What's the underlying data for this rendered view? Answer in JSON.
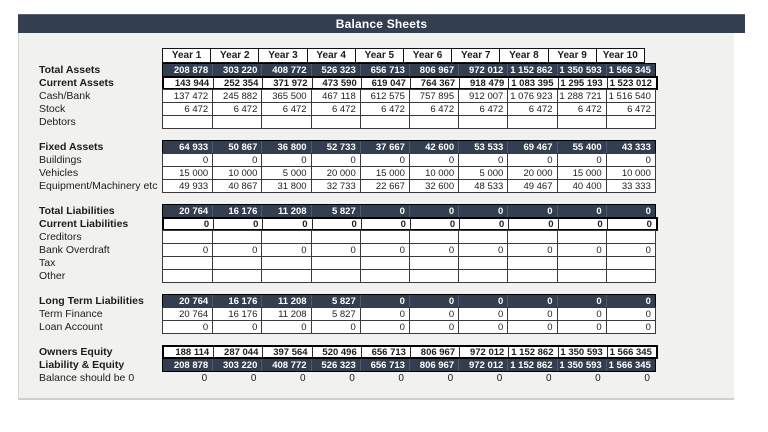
{
  "title": "Balance Sheets",
  "colors": {
    "accent_navy": "#333f50",
    "sheet_background": "#f1f1ef",
    "cell_background": "#ffffff"
  },
  "table": {
    "columns": [
      "Year 1",
      "Year 2",
      "Year 3",
      "Year 4",
      "Year 5",
      "Year 6",
      "Year 7",
      "Year 8",
      "Year 9",
      "Year 10"
    ],
    "sections": [
      {
        "rows": [
          {
            "label": "Total Assets",
            "style": "dark",
            "values": [
              "208 878",
              "303 220",
              "408 772",
              "526 323",
              "656 713",
              "806 967",
              "972 012",
              "1 152 862",
              "1 350 593",
              "1 566 345"
            ]
          },
          {
            "label": "Current Assets",
            "style": "bold",
            "values": [
              "143 944",
              "252 354",
              "371 972",
              "473 590",
              "619 047",
              "764 367",
              "918 479",
              "1 083 395",
              "1 295 193",
              "1 523 012"
            ]
          },
          {
            "label": "Cash/Bank",
            "style": "normal",
            "values": [
              "137 472",
              "245 882",
              "365 500",
              "467 118",
              "612 575",
              "757 895",
              "912 007",
              "1 076 923",
              "1 288 721",
              "1 516 540"
            ]
          },
          {
            "label": "Stock",
            "style": "normal",
            "values": [
              "6 472",
              "6 472",
              "6 472",
              "6 472",
              "6 472",
              "6 472",
              "6 472",
              "6 472",
              "6 472",
              "6 472"
            ]
          },
          {
            "label": "Debtors",
            "style": "normal",
            "values": [
              "",
              "",
              "",
              "",
              "",
              "",
              "",
              "",
              "",
              ""
            ]
          }
        ]
      },
      {
        "rows": [
          {
            "label": "Fixed Assets",
            "style": "dark",
            "values": [
              "64 933",
              "50 867",
              "36 800",
              "52 733",
              "37 667",
              "42 600",
              "53 533",
              "69 467",
              "55 400",
              "43 333"
            ]
          },
          {
            "label": "Buildings",
            "style": "normal",
            "values": [
              "0",
              "0",
              "0",
              "0",
              "0",
              "0",
              "0",
              "0",
              "0",
              "0"
            ]
          },
          {
            "label": "Vehicles",
            "style": "normal",
            "values": [
              "15 000",
              "10 000",
              "5 000",
              "20 000",
              "15 000",
              "10 000",
              "5 000",
              "20 000",
              "15 000",
              "10 000"
            ]
          },
          {
            "label": "Equipment/Machinery etc",
            "style": "normal",
            "values": [
              "49 933",
              "40 867",
              "31 800",
              "32 733",
              "22 667",
              "32 600",
              "48 533",
              "49 467",
              "40 400",
              "33 333"
            ]
          }
        ]
      },
      {
        "rows": [
          {
            "label": "Total Liabilities",
            "style": "dark",
            "values": [
              "20 764",
              "16 176",
              "11 208",
              "5 827",
              "0",
              "0",
              "0",
              "0",
              "0",
              "0"
            ]
          },
          {
            "label": "Current Liabilities",
            "style": "bold",
            "values": [
              "0",
              "0",
              "0",
              "0",
              "0",
              "0",
              "0",
              "0",
              "0",
              "0"
            ]
          },
          {
            "label": "Creditors",
            "style": "normal",
            "values": [
              "",
              "",
              "",
              "",
              "",
              "",
              "",
              "",
              "",
              ""
            ]
          },
          {
            "label": "Bank Overdraft",
            "style": "normal",
            "values": [
              "0",
              "0",
              "0",
              "0",
              "0",
              "0",
              "0",
              "0",
              "0",
              "0"
            ]
          },
          {
            "label": "Tax",
            "style": "normal",
            "values": [
              "",
              "",
              "",
              "",
              "",
              "",
              "",
              "",
              "",
              ""
            ]
          },
          {
            "label": "Other",
            "style": "normal",
            "values": [
              "",
              "",
              "",
              "",
              "",
              "",
              "",
              "",
              "",
              ""
            ]
          }
        ]
      },
      {
        "rows": [
          {
            "label": "Long Term Liabilities",
            "style": "dark",
            "values": [
              "20 764",
              "16 176",
              "11 208",
              "5 827",
              "0",
              "0",
              "0",
              "0",
              "0",
              "0"
            ]
          },
          {
            "label": "Term Finance",
            "style": "normal",
            "values": [
              "20 764",
              "16 176",
              "11 208",
              "5 827",
              "0",
              "0",
              "0",
              "0",
              "0",
              "0"
            ]
          },
          {
            "label": "Loan Account",
            "style": "normal",
            "values": [
              "0",
              "0",
              "0",
              "0",
              "0",
              "0",
              "0",
              "0",
              "0",
              "0"
            ]
          }
        ]
      },
      {
        "rows": [
          {
            "label": "Owners Equity",
            "style": "bold",
            "values": [
              "188 114",
              "287 044",
              "397 564",
              "520 496",
              "656 713",
              "806 967",
              "972 012",
              "1 152 862",
              "1 350 593",
              "1 566 345"
            ]
          },
          {
            "label": "Liability & Equity",
            "style": "dark",
            "values": [
              "208 878",
              "303 220",
              "408 772",
              "526 323",
              "656 713",
              "806 967",
              "972 012",
              "1 152 862",
              "1 350 593",
              "1 566 345"
            ]
          },
          {
            "label": "Balance should be 0",
            "style": "plain",
            "values": [
              "0",
              "0",
              "0",
              "0",
              "0",
              "0",
              "0",
              "0",
              "0",
              "0"
            ]
          }
        ]
      }
    ]
  }
}
